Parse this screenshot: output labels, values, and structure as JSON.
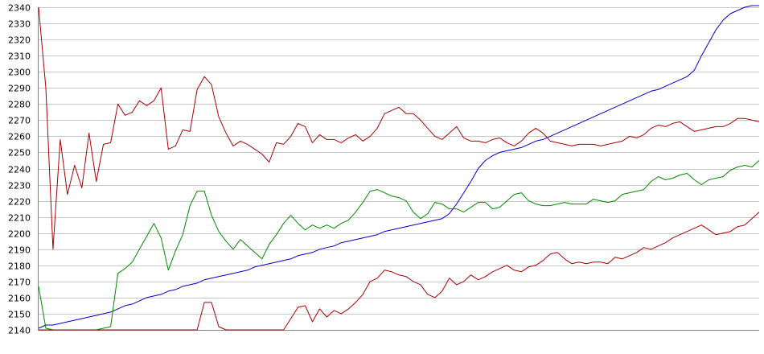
{
  "chart_data": {
    "type": "line",
    "title": "",
    "xlabel": "",
    "ylabel": "",
    "ylim": [
      2140,
      2340
    ],
    "yticks": [
      2140,
      2150,
      2160,
      2170,
      2180,
      2190,
      2200,
      2210,
      2220,
      2230,
      2240,
      2250,
      2260,
      2270,
      2280,
      2290,
      2300,
      2310,
      2320,
      2330,
      2340
    ],
    "grid": true,
    "legend": "none",
    "x": [
      0,
      3,
      6,
      9,
      12,
      15,
      18,
      21,
      24,
      27,
      30,
      33,
      36,
      39,
      42,
      45,
      48,
      51,
      54,
      57,
      60,
      63,
      66,
      69,
      72,
      75,
      78,
      81,
      84,
      87,
      90,
      93,
      96,
      99,
      102,
      105,
      108,
      111,
      114,
      117,
      120,
      123,
      126,
      129,
      132,
      135,
      138,
      141,
      144,
      147,
      150,
      153,
      156,
      159,
      162,
      165,
      168,
      171,
      174,
      177,
      180,
      183,
      186,
      189,
      192,
      195,
      198,
      201,
      204,
      207,
      210,
      213,
      216,
      219,
      222,
      225,
      228,
      231,
      234,
      237,
      240,
      243,
      246,
      249,
      252,
      255,
      258,
      261,
      264,
      267,
      270,
      273,
      276,
      279,
      282,
      285,
      288,
      291,
      294,
      297,
      300
    ],
    "series": [
      {
        "color": "#0000cc",
        "values": [
          2141,
          2143,
          2143,
          2144,
          2145,
          2146,
          2147,
          2148,
          2149,
          2150,
          2151,
          2153,
          2155,
          2156,
          2158,
          2160,
          2161,
          2162,
          2164,
          2165,
          2167,
          2168,
          2169,
          2171,
          2172,
          2173,
          2174,
          2175,
          2176,
          2177,
          2179,
          2180,
          2181,
          2182,
          2183,
          2184,
          2186,
          2187,
          2188,
          2190,
          2191,
          2192,
          2194,
          2195,
          2196,
          2197,
          2198,
          2199,
          2201,
          2202,
          2203,
          2204,
          2205,
          2206,
          2207,
          2208,
          2209,
          2212,
          2218,
          2225,
          2232,
          2240,
          2245,
          2248,
          2250,
          2251,
          2252,
          2253,
          2255,
          2257,
          2258,
          2260,
          2262,
          2264,
          2266,
          2268,
          2270,
          2272,
          2274,
          2276,
          2278,
          2280,
          2282,
          2284,
          2286,
          2288,
          2289,
          2291,
          2293,
          2295,
          2297,
          2301,
          2310,
          2318,
          2326,
          2332,
          2336,
          2338,
          2340,
          2341,
          2341
        ]
      },
      {
        "color": "#aa0000",
        "values": [
          2340,
          2290,
          2190,
          2258,
          2224,
          2242,
          2228,
          2262,
          2232,
          2255,
          2256,
          2280,
          2273,
          2275,
          2282,
          2279,
          2282,
          2290,
          2252,
          2254,
          2264,
          2263,
          2289,
          2297,
          2292,
          2272,
          2262,
          2254,
          2257,
          2255,
          2252,
          2249,
          2244,
          2256,
          2255,
          2260,
          2268,
          2266,
          2256,
          2261,
          2258,
          2258,
          2256,
          2259,
          2261,
          2257,
          2260,
          2265,
          2274,
          2276,
          2278,
          2274,
          2274,
          2270,
          2265,
          2260,
          2258,
          2262,
          2266,
          2259,
          2257,
          2257,
          2256,
          2258,
          2259,
          2256,
          2254,
          2257,
          2262,
          2265,
          2262,
          2257,
          2256,
          2255,
          2254,
          2255,
          2255,
          2255,
          2254,
          2255,
          2256,
          2257,
          2260,
          2259,
          2261,
          2265,
          2267,
          2266,
          2268,
          2269,
          2266,
          2263,
          2264,
          2265,
          2266,
          2266,
          2268,
          2271,
          2271,
          2270,
          2269
        ]
      },
      {
        "color": "#008800",
        "values": [
          2167,
          2141,
          2140,
          2140,
          2140,
          2140,
          2140,
          2140,
          2140,
          2141,
          2142,
          2175,
          2178,
          2182,
          2190,
          2198,
          2206,
          2197,
          2177,
          2189,
          2199,
          2217,
          2226,
          2226,
          2211,
          2201,
          2195,
          2190,
          2196,
          2192,
          2188,
          2184,
          2193,
          2199,
          2206,
          2211,
          2206,
          2202,
          2205,
          2203,
          2205,
          2203,
          2206,
          2208,
          2213,
          2219,
          2226,
          2227,
          2225,
          2223,
          2222,
          2220,
          2213,
          2209,
          2212,
          2219,
          2218,
          2215,
          2215,
          2213,
          2216,
          2219,
          2219,
          2215,
          2216,
          2220,
          2224,
          2225,
          2220,
          2218,
          2217,
          2217,
          2218,
          2219,
          2218,
          2218,
          2218,
          2221,
          2220,
          2219,
          2220,
          2224,
          2225,
          2226,
          2227,
          2232,
          2235,
          2233,
          2234,
          2236,
          2237,
          2233,
          2230,
          2233,
          2234,
          2235,
          2239,
          2241,
          2242,
          2241,
          2245
        ]
      },
      {
        "color": "#aa0000",
        "values": [
          2140,
          2140,
          2140,
          2140,
          2140,
          2140,
          2140,
          2140,
          2140,
          2140,
          2140,
          2140,
          2140,
          2140,
          2140,
          2140,
          2140,
          2140,
          2140,
          2140,
          2140,
          2140,
          2140,
          2157,
          2157,
          2142,
          2140,
          2140,
          2140,
          2140,
          2140,
          2140,
          2140,
          2140,
          2140,
          2147,
          2154,
          2155,
          2145,
          2153,
          2148,
          2152,
          2150,
          2153,
          2157,
          2162,
          2170,
          2172,
          2177,
          2176,
          2174,
          2173,
          2170,
          2168,
          2162,
          2160,
          2164,
          2172,
          2168,
          2170,
          2174,
          2171,
          2173,
          2176,
          2178,
          2180,
          2177,
          2176,
          2179,
          2180,
          2183,
          2187,
          2188,
          2184,
          2181,
          2182,
          2181,
          2182,
          2182,
          2181,
          2185,
          2184,
          2186,
          2188,
          2191,
          2190,
          2192,
          2194,
          2197,
          2199,
          2201,
          2203,
          2205,
          2202,
          2199,
          2200,
          2201,
          2204,
          2205,
          2209,
          2213
        ]
      }
    ]
  }
}
